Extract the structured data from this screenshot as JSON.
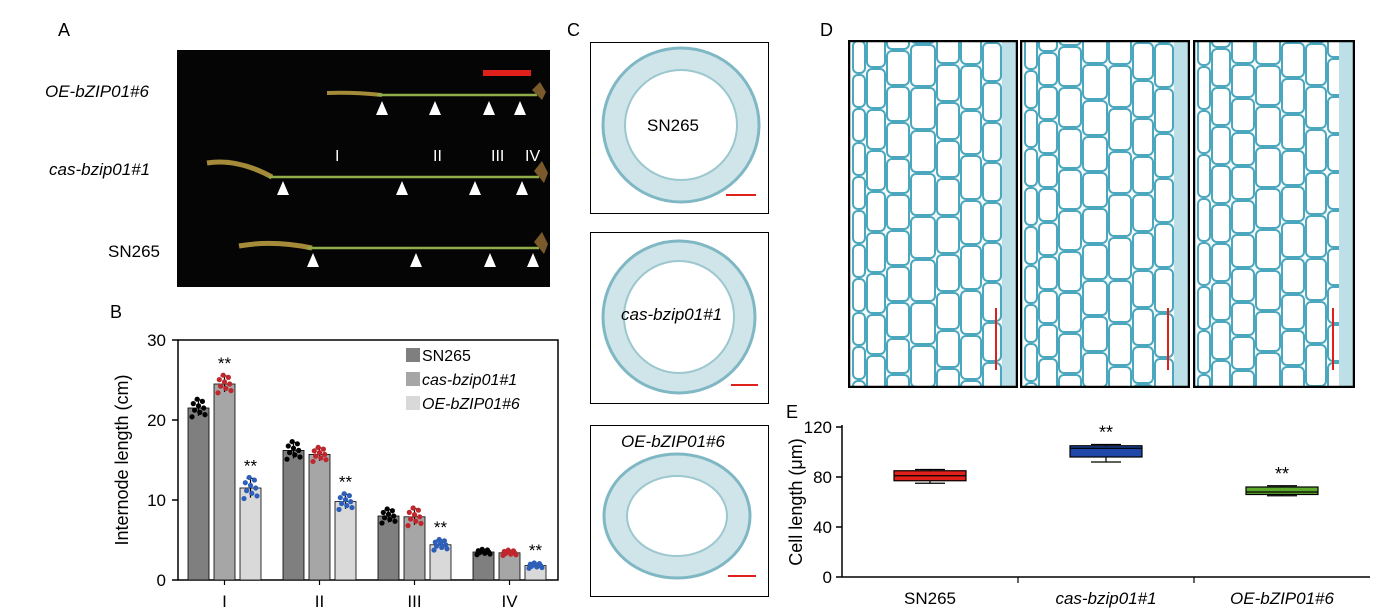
{
  "panels": {
    "a": {
      "letter": "A",
      "rows": [
        "OE-bZIP01#6",
        "cas-bzip01#1",
        "SN265"
      ],
      "internodes": [
        "I",
        "II",
        "III",
        "IV"
      ]
    },
    "b": {
      "letter": "B"
    },
    "c": {
      "letter": "C",
      "sections": [
        "SN265",
        "cas-bzip01#1",
        "OE-bZIP01#6"
      ]
    },
    "d": {
      "letter": "D"
    },
    "e": {
      "letter": "E"
    }
  },
  "chart_data": [
    {
      "type": "bar",
      "panel": "B",
      "ylabel": "Internode length (cm)",
      "ylim": [
        0,
        30
      ],
      "yticks": [
        0,
        10,
        20,
        30
      ],
      "categories": [
        "I",
        "II",
        "III",
        "IV"
      ],
      "series": [
        {
          "name": "SN265",
          "values": [
            21.5,
            16.2,
            8.0,
            3.5
          ],
          "errors": [
            1.0,
            1.0,
            0.8,
            0.3
          ],
          "color": "#7f7f7f",
          "dot_color": "#000000",
          "sig": [
            "",
            "",
            "",
            ""
          ]
        },
        {
          "name": "cas-bzip01#1",
          "values": [
            24.5,
            15.7,
            7.9,
            3.4
          ],
          "errors": [
            1.0,
            0.8,
            1.0,
            0.3
          ],
          "color": "#a6a6a6",
          "dot_color": "#c0272d",
          "sig": [
            "**",
            "",
            "",
            ""
          ]
        },
        {
          "name": "OE-bZIP01#6",
          "values": [
            11.5,
            9.8,
            4.4,
            1.8
          ],
          "errors": [
            1.2,
            0.9,
            0.6,
            0.3
          ],
          "color": "#d9d9d9",
          "dot_color": "#2e5fb8",
          "sig": [
            "**",
            "**",
            "**",
            "**"
          ]
        }
      ],
      "legend_position": "top-right"
    },
    {
      "type": "box",
      "panel": "E",
      "ylabel": "Cell length (μm)",
      "ylim": [
        0,
        120
      ],
      "yticks": [
        0,
        40,
        80,
        120
      ],
      "categories": [
        "SN265",
        "cas-bzip01#1",
        "OE-bZIP01#6"
      ],
      "boxes": [
        {
          "min": 75,
          "q1": 77,
          "median": 81,
          "q3": 85,
          "max": 86,
          "color": "#e0201b",
          "sig": ""
        },
        {
          "min": 92,
          "q1": 96,
          "median": 103,
          "q3": 105,
          "max": 106,
          "color": "#1f48a8",
          "sig": "**"
        },
        {
          "min": 65,
          "q1": 66,
          "median": 68,
          "q3": 72,
          "max": 73,
          "color": "#5ea82b",
          "sig": "**"
        }
      ]
    }
  ]
}
